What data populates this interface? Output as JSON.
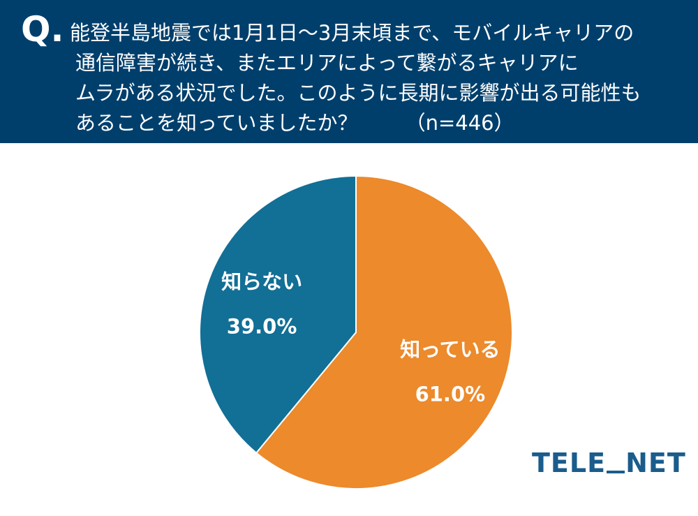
{
  "header": {
    "q_mark": "Q.",
    "question_lines": [
      "能登半島地震では1月1日～3月末頃まで、モバイルキャリアの",
      "通信障害が続き、またエリアによって繋がるキャリアに",
      "ムラがある状況でした。このように長期に影響が出る可能性も",
      "あることを知っていましたか？"
    ],
    "sample_size": "（n=446）"
  },
  "logo": {
    "left": "TELE",
    "right": "NET"
  },
  "chart_data": {
    "type": "pie",
    "start": "12 o'clock",
    "direction": "clockwise",
    "slices": [
      {
        "label": "知っている",
        "value": 61.0,
        "value_label": "61.0%",
        "color": "#ec8a2c"
      },
      {
        "label": "知らない",
        "value": 39.0,
        "value_label": "39.0%",
        "color": "#126f96"
      }
    ],
    "border_color": "#ffffff"
  }
}
